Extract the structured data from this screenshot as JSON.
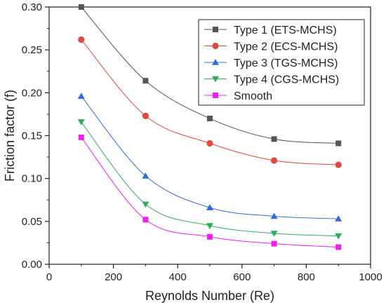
{
  "chart_data": {
    "type": "line",
    "title": "",
    "xlabel": "Reynolds Number (Re)",
    "ylabel": "Friction factor (f)",
    "xlim": [
      0,
      1000
    ],
    "ylim": [
      0,
      0.3
    ],
    "xticks": [
      0,
      200,
      400,
      600,
      800,
      1000
    ],
    "xtick_labels": [
      "0",
      "200",
      "400",
      "600",
      "800",
      "1000"
    ],
    "yticks": [
      0.0,
      0.05,
      0.1,
      0.15,
      0.2,
      0.25,
      0.3
    ],
    "ytick_labels": [
      "0.00",
      "0.05",
      "0.10",
      "0.15",
      "0.20",
      "0.25",
      "0.30"
    ],
    "grid": false,
    "legend_position": "top-right",
    "x": [
      100,
      300,
      500,
      700,
      900
    ],
    "series": [
      {
        "name": "Type 1 (ETS-MCHS)",
        "values": [
          0.3,
          0.214,
          0.17,
          0.146,
          0.141
        ],
        "color": "#555555",
        "marker": "square"
      },
      {
        "name": "Type 2 (ECS-MCHS)",
        "values": [
          0.262,
          0.173,
          0.141,
          0.121,
          0.116
        ],
        "color": "#e04a3f",
        "marker": "circle"
      },
      {
        "name": "Type 3 (TGS-MCHS)",
        "values": [
          0.196,
          0.103,
          0.066,
          0.056,
          0.053
        ],
        "color": "#2f6fdc",
        "marker": "triangle-up"
      },
      {
        "name": "Type 4 (CGS-MCHS)",
        "values": [
          0.166,
          0.07,
          0.045,
          0.036,
          0.033
        ],
        "color": "#2fae5a",
        "marker": "triangle-down"
      },
      {
        "name": "Smooth",
        "values": [
          0.148,
          0.052,
          0.032,
          0.024,
          0.02
        ],
        "color": "#f01ef0",
        "marker": "square"
      }
    ]
  }
}
